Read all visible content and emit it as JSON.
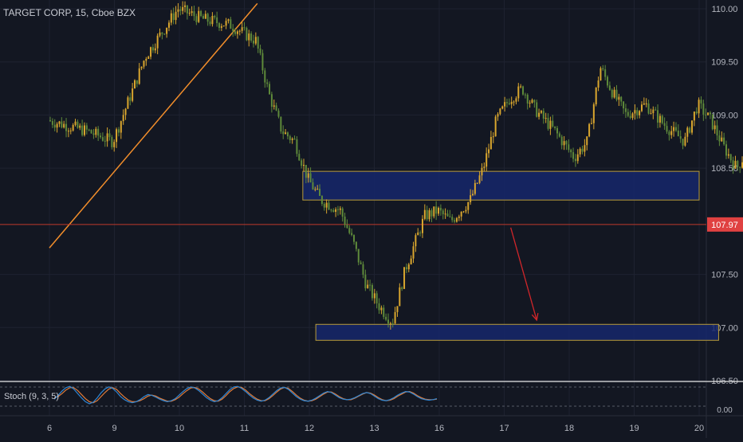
{
  "chart_data": {
    "type": "candlestick",
    "title": "TARGET CORP, 15, Cboe BZX",
    "last_price": "107.97",
    "x_ticks": [
      "6",
      "9",
      "10",
      "11",
      "12",
      "13",
      "16",
      "17",
      "18",
      "19",
      "20"
    ],
    "y_ticks": [
      "110.00",
      "109.50",
      "109.00",
      "108.50",
      "107.97",
      "107.50",
      "107.00",
      "106.50"
    ],
    "ylim": [
      106.5,
      110.0
    ],
    "price_path": [
      {
        "x": 0.0,
        "y": 108.95
      },
      {
        "x": 0.3,
        "y": 108.9
      },
      {
        "x": 0.6,
        "y": 108.85
      },
      {
        "x": 1.0,
        "y": 108.75
      },
      {
        "x": 1.5,
        "y": 109.55
      },
      {
        "x": 2.0,
        "y": 110.0
      },
      {
        "x": 2.4,
        "y": 109.9
      },
      {
        "x": 2.8,
        "y": 109.85
      },
      {
        "x": 3.2,
        "y": 109.7
      },
      {
        "x": 3.4,
        "y": 109.2
      },
      {
        "x": 3.6,
        "y": 108.85
      },
      {
        "x": 3.8,
        "y": 108.75
      },
      {
        "x": 4.0,
        "y": 108.4
      },
      {
        "x": 4.2,
        "y": 108.2
      },
      {
        "x": 4.5,
        "y": 108.1
      },
      {
        "x": 4.7,
        "y": 107.8
      },
      {
        "x": 4.9,
        "y": 107.4
      },
      {
        "x": 5.1,
        "y": 107.2
      },
      {
        "x": 5.3,
        "y": 107.05
      },
      {
        "x": 5.5,
        "y": 107.55
      },
      {
        "x": 5.8,
        "y": 108.05
      },
      {
        "x": 6.0,
        "y": 108.1
      },
      {
        "x": 6.2,
        "y": 108.0
      },
      {
        "x": 6.5,
        "y": 108.2
      },
      {
        "x": 6.7,
        "y": 108.5
      },
      {
        "x": 6.9,
        "y": 108.95
      },
      {
        "x": 7.1,
        "y": 109.15
      },
      {
        "x": 7.3,
        "y": 109.25
      },
      {
        "x": 7.5,
        "y": 109.05
      },
      {
        "x": 7.8,
        "y": 108.85
      },
      {
        "x": 8.1,
        "y": 108.6
      },
      {
        "x": 8.3,
        "y": 108.75
      },
      {
        "x": 8.5,
        "y": 109.45
      },
      {
        "x": 8.7,
        "y": 109.2
      },
      {
        "x": 8.9,
        "y": 109.0
      },
      {
        "x": 9.2,
        "y": 109.1
      },
      {
        "x": 9.5,
        "y": 108.9
      },
      {
        "x": 9.8,
        "y": 108.75
      },
      {
        "x": 10.0,
        "y": 109.1
      },
      {
        "x": 10.2,
        "y": 108.95
      },
      {
        "x": 10.4,
        "y": 108.7
      },
      {
        "x": 10.6,
        "y": 108.5
      },
      {
        "x": 10.8,
        "y": 108.7
      },
      {
        "x": 11.0,
        "y": 108.6
      },
      {
        "x": 11.2,
        "y": 108.3
      },
      {
        "x": 11.4,
        "y": 108.2
      },
      {
        "x": 11.6,
        "y": 107.97
      }
    ],
    "trendline": {
      "from": {
        "x": 0.0,
        "y": 107.75
      },
      "to": {
        "x": 3.2,
        "y": 110.05
      }
    },
    "zones": [
      {
        "x_start": 3.9,
        "x_end": 10.0,
        "y_low": 108.2,
        "y_high": 108.47
      },
      {
        "x_start": 4.1,
        "x_end": 10.3,
        "y_low": 106.88,
        "y_high": 107.03
      }
    ],
    "arrow": {
      "from": {
        "x": 7.1,
        "y": 107.94
      },
      "to": {
        "x": 7.5,
        "y": 107.07
      }
    },
    "stoch_label": "Stoch (9, 3, 5)",
    "stoch_ticks": [
      "0.00"
    ],
    "stoch_k": [
      40,
      55,
      72,
      85,
      90,
      80,
      62,
      45,
      30,
      22,
      28,
      45,
      65,
      80,
      88,
      82,
      68,
      50,
      38,
      30,
      26,
      30,
      38,
      50,
      58,
      55,
      48,
      40,
      34,
      30,
      34,
      42,
      56,
      70,
      82,
      88,
      84,
      74,
      60,
      46,
      36,
      30,
      34,
      46,
      62,
      78,
      88,
      90,
      82,
      70,
      56,
      44,
      36,
      32,
      36,
      46,
      60,
      74,
      84,
      86,
      78,
      64,
      50,
      40,
      34,
      32,
      36,
      44,
      54,
      64,
      70,
      66,
      56,
      46,
      40,
      38,
      40,
      46,
      54,
      62,
      66,
      62,
      52,
      42,
      36,
      34,
      38,
      46,
      56,
      64,
      70,
      68,
      60,
      50,
      42,
      38,
      36,
      38,
      42
    ],
    "stoch_d": [
      45,
      50,
      62,
      76,
      85,
      85,
      74,
      58,
      42,
      30,
      26,
      34,
      50,
      66,
      80,
      85,
      78,
      62,
      48,
      36,
      30,
      30,
      34,
      42,
      52,
      56,
      52,
      44,
      38,
      32,
      32,
      38,
      48,
      62,
      74,
      84,
      86,
      80,
      68,
      54,
      42,
      34,
      32,
      40,
      54,
      70,
      82,
      88,
      86,
      76,
      62,
      50,
      40,
      34,
      34,
      42,
      54,
      68,
      80,
      86,
      82,
      70,
      56,
      44,
      36,
      32,
      34,
      40,
      50,
      60,
      68,
      68,
      60,
      50,
      42,
      38,
      38,
      44,
      52,
      60,
      66,
      64,
      56,
      46,
      38,
      34,
      36,
      42,
      52,
      60,
      68,
      70,
      64,
      54,
      46,
      40,
      38,
      38,
      40
    ],
    "colors": {
      "background": "#131722",
      "up": "#d9a62e",
      "down": "#5e8a3a",
      "zone_fill": "#16276b",
      "zone_border": "#b89b3a",
      "trendline": "#f28e2b",
      "price_line": "#c0392b",
      "arrow": "#d0262a",
      "label_bg": "#e04141",
      "stoch_k": "#2f86d4",
      "stoch_d": "#e07b39",
      "axis_text": "#b2b5be"
    }
  }
}
